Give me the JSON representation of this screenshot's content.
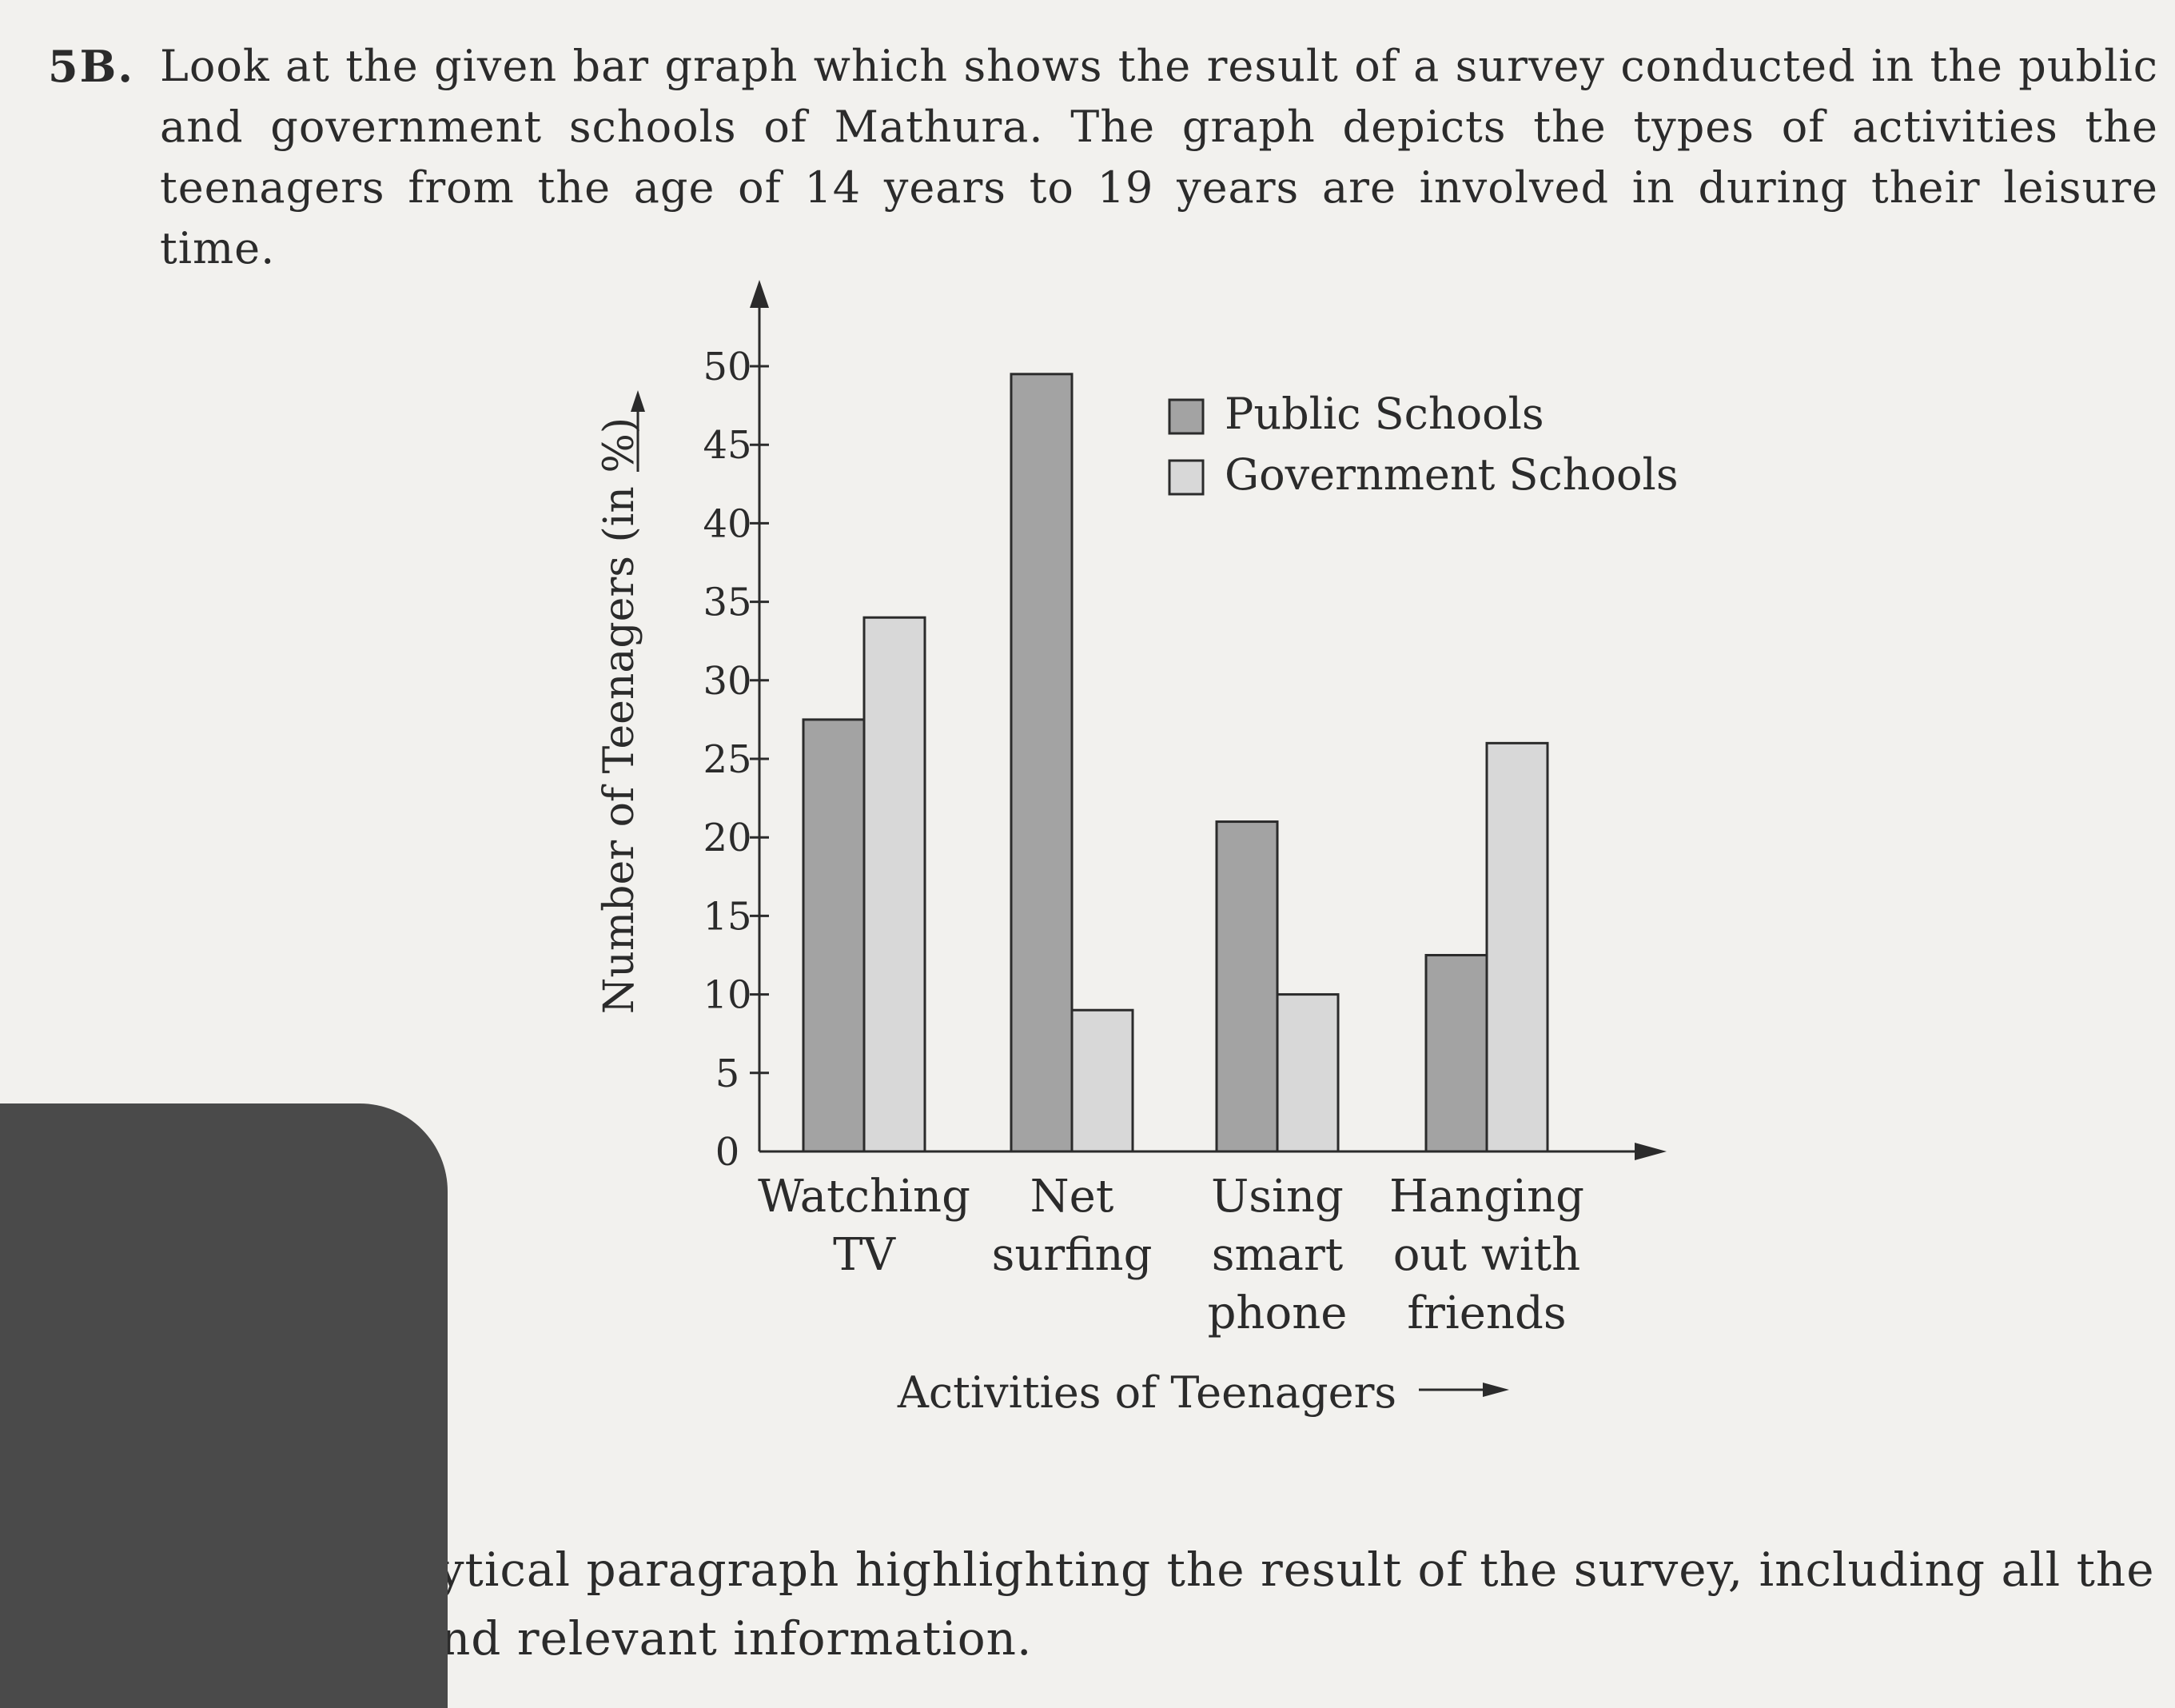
{
  "question": {
    "number": "5B.",
    "text": "Look at the given bar graph which shows the result of a survey conducted in the public and government schools of Mathura. The graph depicts the types of activities the teenagers from the age of 14 years to 19 years are involved in during their leisure time."
  },
  "instruction": "Write an analytical paragraph highlighting the result of the survey, including all the main points and relevant information.",
  "chart_data": {
    "type": "bar",
    "categories": [
      [
        "Watching",
        "TV"
      ],
      [
        "Net",
        "surfing"
      ],
      [
        "Using",
        "smart",
        "phone"
      ],
      [
        "Hanging",
        "out with",
        "friends"
      ]
    ],
    "series": [
      {
        "name": "Public Schools",
        "values": [
          27.5,
          49.5,
          21,
          12.5
        ],
        "color": "#a3a3a3"
      },
      {
        "name": "Government Schools",
        "values": [
          34,
          9,
          10,
          26
        ],
        "color": "#d8d8d8"
      }
    ],
    "xlabel": "Activities of Teenagers",
    "ylabel": "Number of Teenagers (in %)",
    "yticks": [
      "0",
      "5",
      "10",
      "15",
      "20",
      "25",
      "30",
      "35",
      "40",
      "45",
      "50"
    ],
    "ylim": [
      0,
      50
    ],
    "legend_position": "top-right",
    "grid": false
  }
}
